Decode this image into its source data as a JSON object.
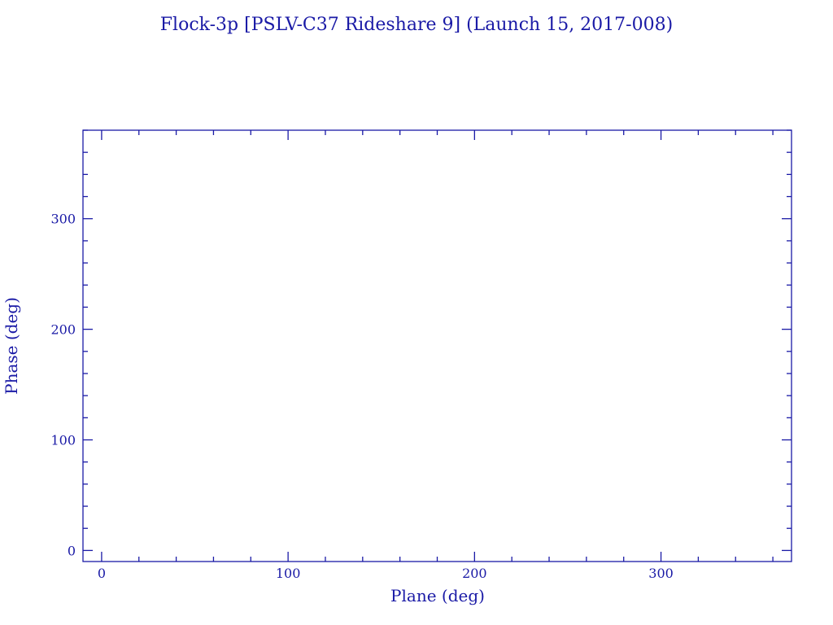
{
  "chart_data": {
    "type": "scatter",
    "title": "Flock-3p [PSLV-C37 Rideshare 9] (Launch 15, 2017-008)",
    "xlabel": "Plane (deg)",
    "ylabel": "Phase (deg)",
    "xlim": [
      -10,
      370
    ],
    "ylim": [
      -10,
      380
    ],
    "x_major_ticks": [
      0,
      100,
      200,
      300
    ],
    "y_major_ticks": [
      0,
      100,
      200,
      300
    ],
    "x_tick_labels": [
      "0",
      "100",
      "200",
      "300"
    ],
    "y_tick_labels": [
      "0",
      "100",
      "200",
      "300"
    ],
    "minor_tick_step": 20,
    "grid": false,
    "series": [
      {
        "x": [],
        "y": []
      }
    ],
    "color": "#1a1aa6"
  }
}
